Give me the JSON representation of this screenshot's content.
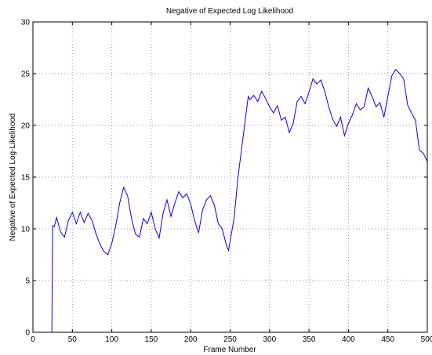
{
  "chart_data": {
    "type": "line",
    "title": "Negative of Expected Log Likelihood",
    "xlabel": "Frame Number",
    "ylabel": "Negative of Expected Log-Likelihood",
    "x": [
      0,
      24,
      25,
      27,
      30,
      35,
      40,
      45,
      50,
      55,
      60,
      65,
      70,
      75,
      80,
      85,
      90,
      95,
      100,
      105,
      110,
      115,
      120,
      125,
      130,
      135,
      140,
      145,
      150,
      155,
      160,
      165,
      170,
      175,
      180,
      185,
      190,
      195,
      200,
      205,
      210,
      215,
      220,
      225,
      230,
      235,
      240,
      245,
      248,
      250,
      255,
      260,
      265,
      270,
      273,
      275,
      280,
      285,
      290,
      295,
      300,
      305,
      310,
      315,
      320,
      325,
      330,
      335,
      340,
      345,
      350,
      355,
      360,
      365,
      370,
      375,
      380,
      385,
      390,
      395,
      400,
      405,
      410,
      415,
      420,
      425,
      430,
      435,
      440,
      445,
      450,
      455,
      460,
      465,
      470,
      475,
      480,
      485,
      490,
      495,
      500
    ],
    "series": [
      {
        "name": "Negative of Expected Log-Likelihood",
        "color": "#0000ff",
        "values": [
          0,
          0,
          10.3,
          10.2,
          11.1,
          9.7,
          9.2,
          10.8,
          11.6,
          10.5,
          11.6,
          10.6,
          11.5,
          10.8,
          9.5,
          8.5,
          7.8,
          7.5,
          8.6,
          10.3,
          12.5,
          14.0,
          13.2,
          11.0,
          9.5,
          9.2,
          11.0,
          10.5,
          11.6,
          10.0,
          9.1,
          11.5,
          12.8,
          11.2,
          12.5,
          13.6,
          13.0,
          13.4,
          12.4,
          10.8,
          9.6,
          11.8,
          12.8,
          13.2,
          12.3,
          10.5,
          10.0,
          8.5,
          7.9,
          8.8,
          11.0,
          15.0,
          18.0,
          21.0,
          22.8,
          22.5,
          22.9,
          22.3,
          23.3,
          22.6,
          21.8,
          21.2,
          21.9,
          20.5,
          20.8,
          19.3,
          20.2,
          22.3,
          22.8,
          22.1,
          23.2,
          24.5,
          24.0,
          24.4,
          23.3,
          21.8,
          20.6,
          19.9,
          20.8,
          19.0,
          20.2,
          21.0,
          22.1,
          21.5,
          21.8,
          23.6,
          22.8,
          21.8,
          22.2,
          20.8,
          22.8,
          24.8,
          25.4,
          25.0,
          24.5,
          22.0,
          21.2,
          20.5,
          17.6,
          17.3,
          16.5
        ]
      }
    ],
    "xlim": [
      0,
      500
    ],
    "xticks": [
      0,
      50,
      100,
      150,
      200,
      250,
      300,
      350,
      400,
      450,
      500
    ],
    "ylim": [
      0,
      30
    ],
    "yticks": [
      0,
      5,
      10,
      15,
      20,
      25,
      30
    ],
    "grid": true
  }
}
